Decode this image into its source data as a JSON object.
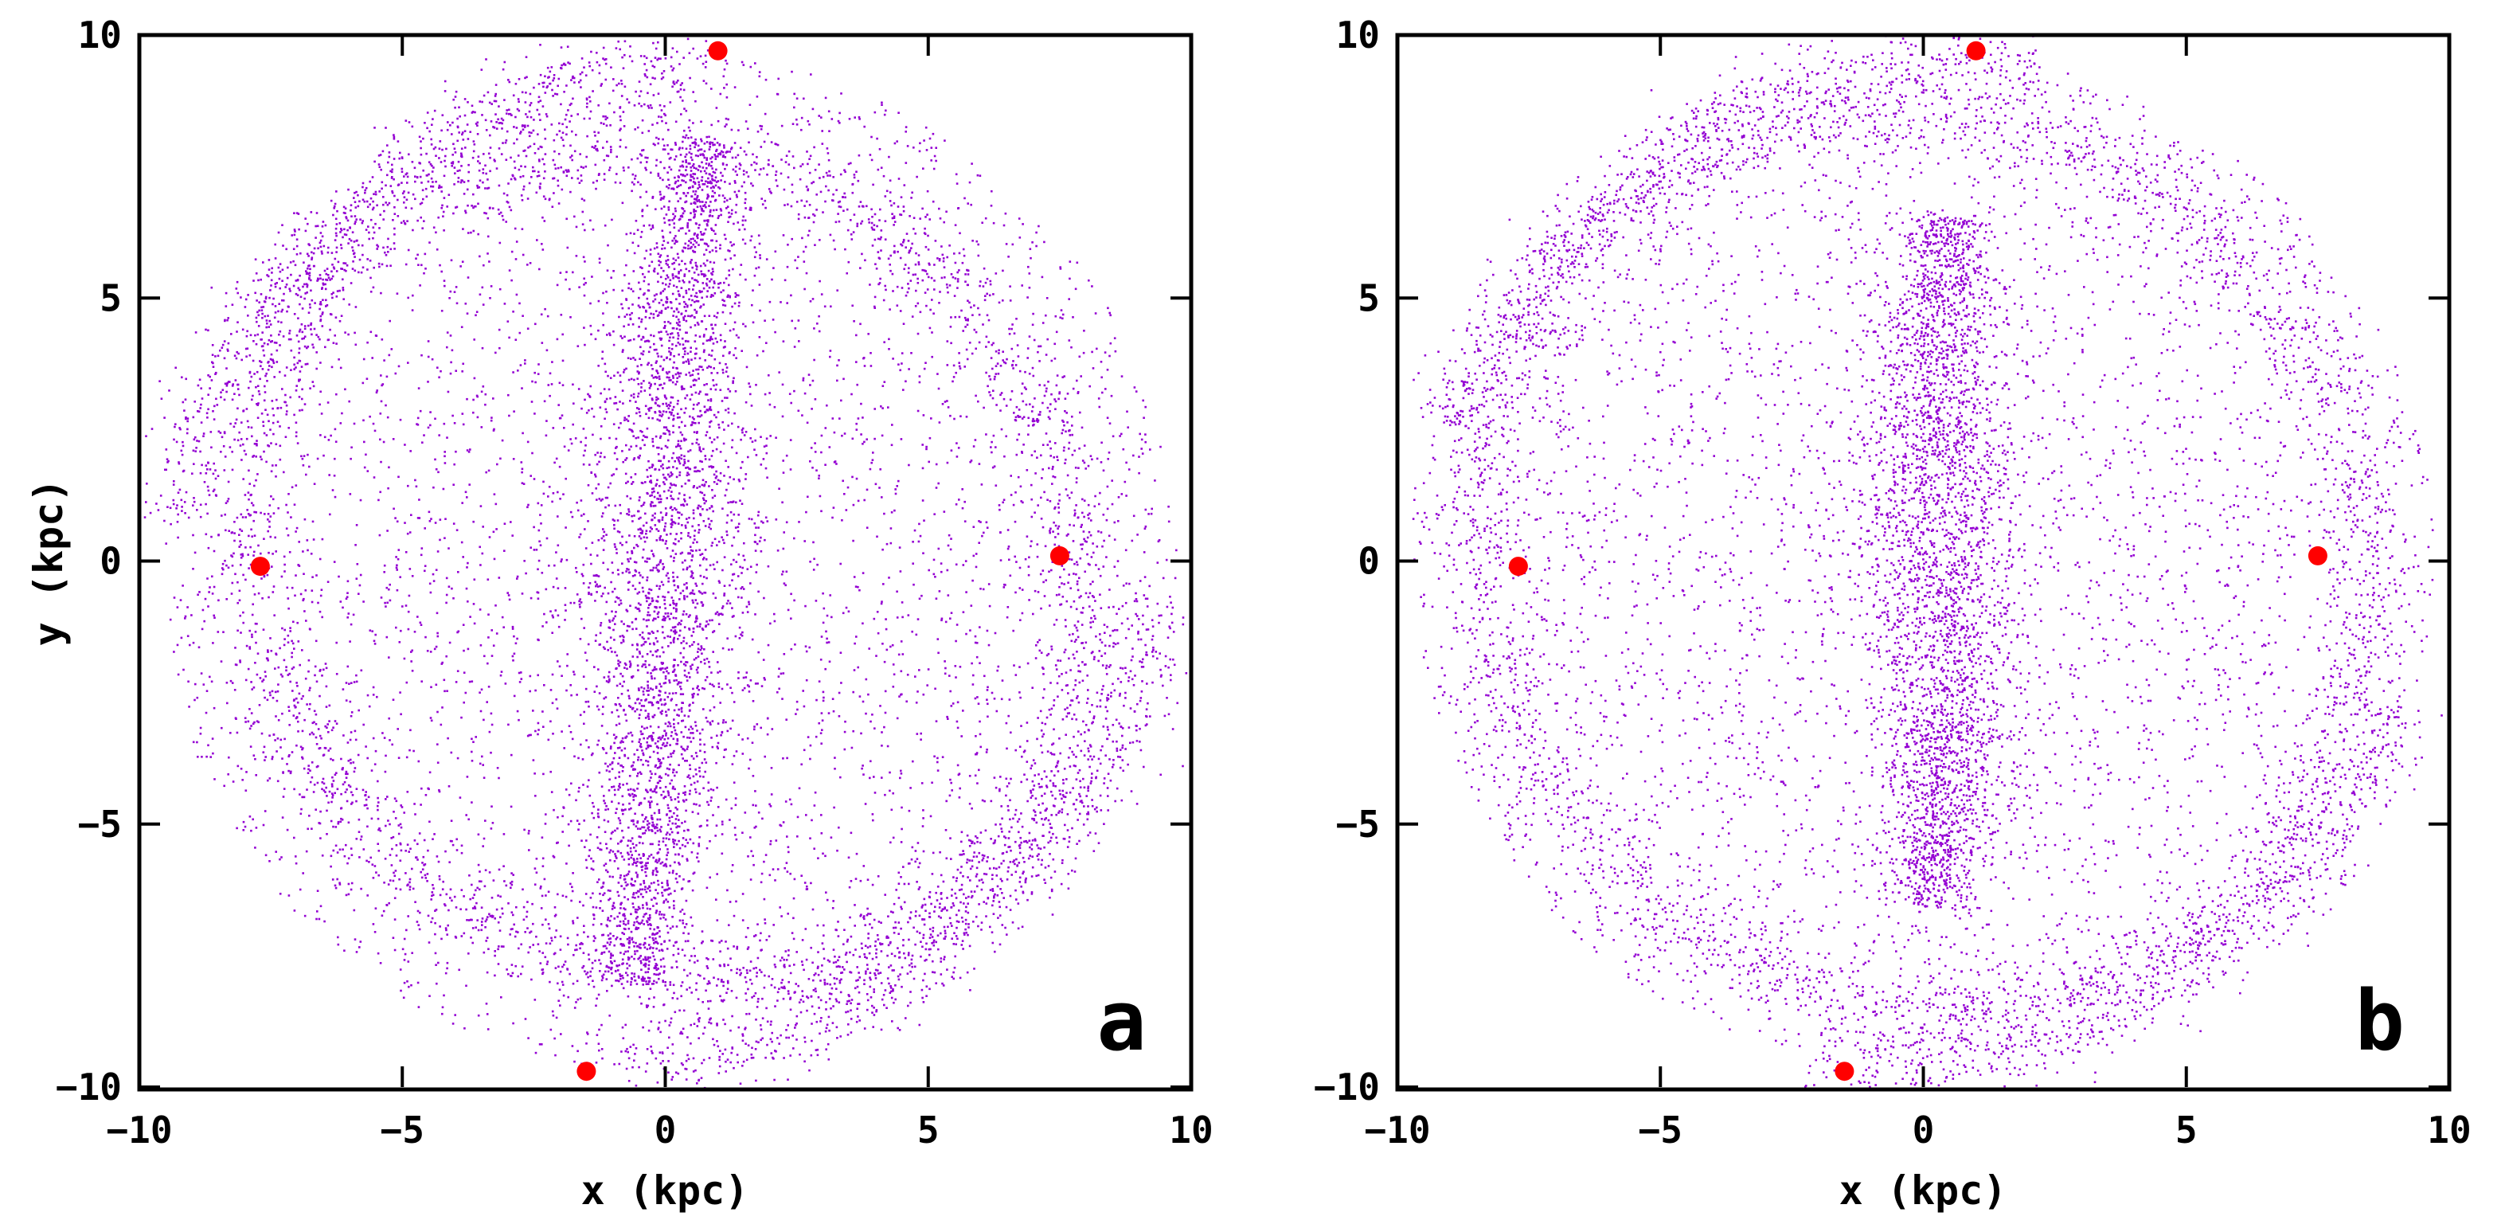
{
  "chart_data": [
    {
      "type": "scatter",
      "panel_label": "a",
      "xlabel": "x (kpc)",
      "ylabel": "y (kpc)",
      "xlim": [
        -10,
        10
      ],
      "ylim": [
        -10,
        10
      ],
      "xticks": [
        -10,
        -5,
        0,
        5,
        10
      ],
      "yticks": [
        -10,
        -5,
        0,
        5,
        10
      ],
      "xtick_labels": [
        "−10",
        "−5",
        "0",
        "5",
        "10"
      ],
      "ytick_labels": [
        "−10",
        "−5",
        "0",
        "5",
        "10"
      ],
      "grid": false,
      "series": [
        {
          "name": "gas particles",
          "color": "#9400d3",
          "description_values": {
            "disc_radius_kpc": 10,
            "outer_arms": [
              {
                "center": [
                  0.8,
                  0.8
                ],
                "radius": 8.7,
                "from_deg": 90,
                "to_deg": 350
              },
              {
                "center": [
                  -0.8,
                  -0.8
                ],
                "radius": 8.7,
                "from_deg": 270,
                "to_deg": 530
              }
            ],
            "central_bar": {
              "center": [
                0,
                0
              ],
              "length_kpc": 16,
              "angle_deg": 78
            }
          }
        },
        {
          "name": "markers",
          "color": "#ff0000",
          "points": [
            [
              1.0,
              9.7
            ],
            [
              -1.5,
              -9.7
            ],
            [
              -7.7,
              -0.1
            ],
            [
              7.5,
              0.1
            ]
          ]
        }
      ]
    },
    {
      "type": "scatter",
      "panel_label": "b",
      "xlabel": "x (kpc)",
      "ylabel": "",
      "xlim": [
        -10,
        10
      ],
      "ylim": [
        -10,
        10
      ],
      "xticks": [
        -10,
        -5,
        0,
        5,
        10
      ],
      "yticks": [
        -10,
        -5,
        0,
        5,
        10
      ],
      "xtick_labels": [
        "−10",
        "−5",
        "0",
        "5",
        "10"
      ],
      "ytick_labels": [
        "−10",
        "−5",
        "0",
        "5",
        "10"
      ],
      "grid": false,
      "series": [
        {
          "name": "gas particles",
          "color": "#9400d3",
          "description_values": {
            "disc_radius_kpc": 10,
            "outer_arms": [
              {
                "center": [
                  0.6,
                  0.5
                ],
                "radius": 9.0,
                "from_deg": 80,
                "to_deg": 340
              },
              {
                "center": [
                  -0.6,
                  -0.5
                ],
                "radius": 9.0,
                "from_deg": 260,
                "to_deg": 520
              }
            ],
            "central_bar": {
              "center": [
                0.3,
                0
              ],
              "length_kpc": 13,
              "angle_deg": 80
            }
          }
        },
        {
          "name": "markers",
          "color": "#ff0000",
          "points": [
            [
              1.0,
              9.7
            ],
            [
              -1.5,
              -9.7
            ],
            [
              -7.7,
              -0.1
            ],
            [
              7.5,
              0.1
            ]
          ]
        }
      ]
    }
  ]
}
